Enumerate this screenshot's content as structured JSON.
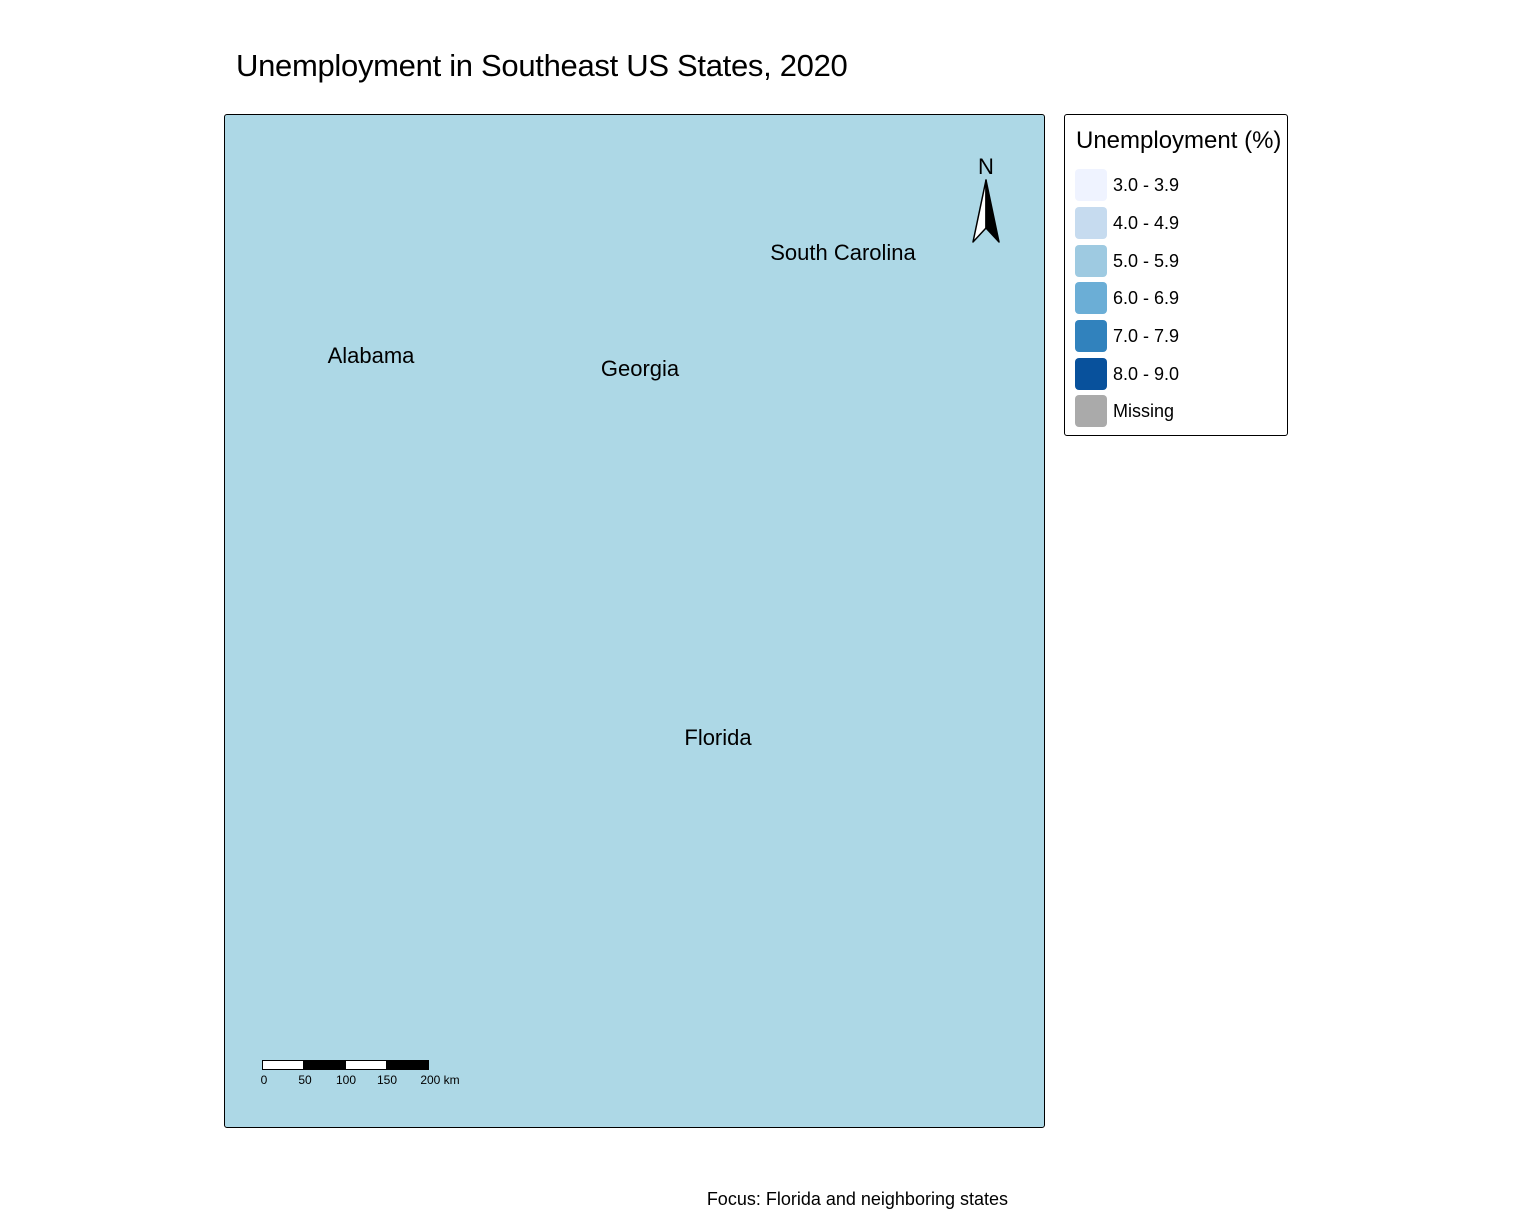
{
  "title": "Unemployment in Southeast US States, 2020",
  "map": {
    "background_color": "#add8e6",
    "labels": [
      {
        "name": "South Carolina"
      },
      {
        "name": "Alabama"
      },
      {
        "name": "Georgia"
      },
      {
        "name": "Florida"
      }
    ],
    "north_arrow": {
      "letter": "N"
    },
    "scale_bar": {
      "ticks": [
        "0",
        "50",
        "100",
        "150",
        "200 km"
      ]
    },
    "caption": "Focus: Florida and neighboring states"
  },
  "legend": {
    "title": "Unemployment (%)",
    "items": [
      {
        "label": "3.0 - 3.9",
        "color": "#eff3ff"
      },
      {
        "label": "4.0 - 4.9",
        "color": "#c6dbef"
      },
      {
        "label": "5.0 - 5.9",
        "color": "#9ecae1"
      },
      {
        "label": "6.0 - 6.9",
        "color": "#6baed6"
      },
      {
        "label": "7.0 - 7.9",
        "color": "#3182bd"
      },
      {
        "label": "8.0 - 9.0",
        "color": "#08519c"
      },
      {
        "label": "Missing",
        "color": "#aaaaaa"
      }
    ]
  }
}
